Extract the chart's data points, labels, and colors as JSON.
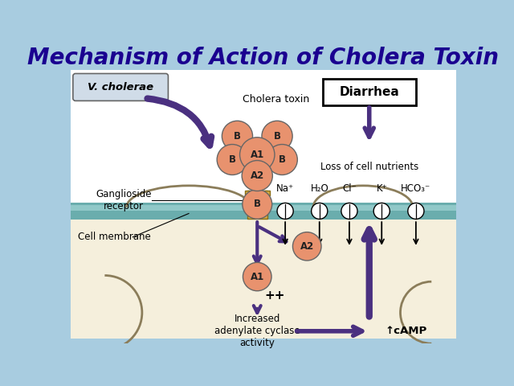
{
  "title": "Mechanism of Action of Cholera Toxin",
  "title_color": "#1a0090",
  "title_fontsize": 20,
  "bg_color": "#a8cce0",
  "white_bg": "#ffffff",
  "cream_bg": "#f5efdc",
  "teal_membrane": "#6aadad",
  "teal_light": "#90c8c8",
  "purple": "#4a3080",
  "salmon": "#e8926e",
  "gold": "#d4a843",
  "black": "#222222",
  "labels": {
    "v_cholerae": "V. cholerae",
    "cholera_toxin": "Cholera toxin",
    "ganglioside": "Ganglioside\nreceptor",
    "cell_membrane": "Cell membrane",
    "diarrhea": "Diarrhea",
    "loss_of_nutrients": "Loss of cell nutrients",
    "na": "Na⁺",
    "h2o": "H₂O",
    "cl": "Cl⁻",
    "k": "K⁺",
    "hco3": "HCO₃⁻",
    "A1_label": "A1",
    "A2_label": "A2",
    "B_label": "B",
    "pp": "++",
    "increased_adenylate": "Increased\nadenylate cyclase\nactivity",
    "camp": "↑cAMP"
  }
}
